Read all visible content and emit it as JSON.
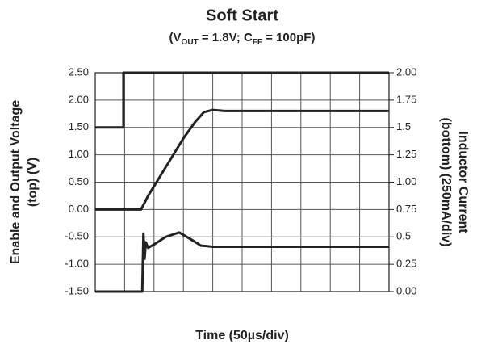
{
  "chart_data": {
    "type": "line",
    "title": "Soft Start",
    "subtitle_parts": [
      "(V",
      "OUT",
      " = 1.8V; C",
      "FF",
      " = 100pF)"
    ],
    "x_label": "Time (50µs/div)",
    "y_label_lines": [
      "Enable and Output Voltage",
      "(top) (V)"
    ],
    "y2_label_lines": [
      "Inductor Current",
      "(bottom) (250mA/div)"
    ],
    "xlim": [
      0,
      500
    ],
    "xticks": [
      0,
      50,
      100,
      150,
      200,
      250,
      300,
      350,
      400,
      450,
      500
    ],
    "ylim": [
      -1.5,
      2.5
    ],
    "yticks": [
      {
        "value": -1.5,
        "label": "-1.50"
      },
      {
        "value": -1,
        "label": "-1.00"
      },
      {
        "value": -0.5,
        "label": "-0.50"
      },
      {
        "value": 0,
        "label": "0.00"
      },
      {
        "value": 0.5,
        "label": "0.50"
      },
      {
        "value": 1,
        "label": "1.00"
      },
      {
        "value": 1.5,
        "label": "1.50"
      },
      {
        "value": 2,
        "label": "2.00"
      },
      {
        "value": 2.5,
        "label": "2.50"
      }
    ],
    "y2lim": [
      0,
      2
    ],
    "y2ticks": [
      {
        "value": 0,
        "label": "0.00"
      },
      0.25,
      0.5,
      0.75,
      {
        "value": 1,
        "label": "1.00"
      },
      1.25,
      1.5,
      1.75,
      {
        "value": 2,
        "label": "2.00"
      }
    ],
    "grid": true,
    "series": [
      {
        "color": "#222222",
        "axis": "y",
        "x": [
          0,
          48,
          48,
          500
        ],
        "values": [
          1.5,
          1.5,
          2.5,
          2.5
        ]
      },
      {
        "color": "#222222",
        "axis": "y",
        "x": [
          0,
          78,
          90,
          110,
          130,
          150,
          170,
          185,
          200,
          220,
          500
        ],
        "values": [
          0,
          0,
          0.25,
          0.6,
          0.95,
          1.3,
          1.6,
          1.78,
          1.82,
          1.8,
          1.8
        ]
      },
      {
        "color": "#222222",
        "axis": "y2",
        "x": [
          0,
          80,
          82,
          84,
          86,
          90,
          100,
          120,
          143,
          165,
          180,
          200,
          500
        ],
        "values": [
          0,
          0,
          0.53,
          0.3,
          0.45,
          0.4,
          0.43,
          0.5,
          0.54,
          0.47,
          0.42,
          0.41,
          0.41
        ]
      }
    ]
  }
}
